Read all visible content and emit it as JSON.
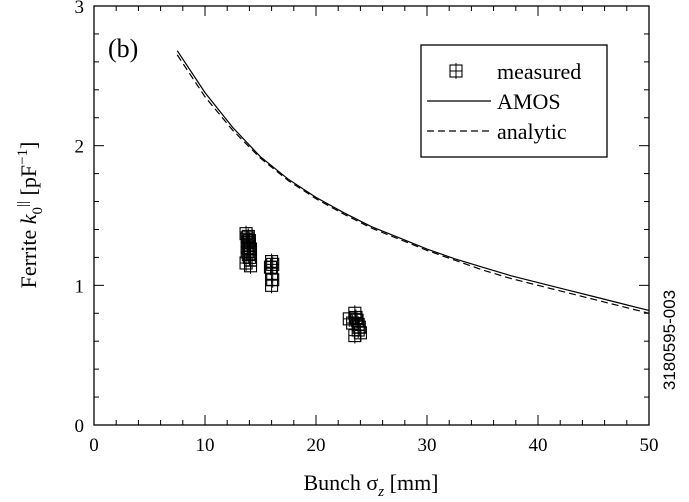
{
  "chart_data": {
    "type": "scatter",
    "panel_label": "(b)",
    "xlabel": "Bunch σ",
    "xlabel_sub": "z",
    "xlabel_unit": " [mm]",
    "ylabel_prefix": "Ferrite ",
    "ylabel_var": "k",
    "ylabel_sub": "0",
    "ylabel_sup": "||",
    "ylabel_unit": " [pF",
    "ylabel_unit_sup": "−1",
    "ylabel_unit_end": "]",
    "xlim": [
      0,
      50
    ],
    "ylim": [
      0,
      3
    ],
    "xticks": [
      0,
      10,
      20,
      30,
      40,
      50
    ],
    "yticks": [
      0,
      1,
      2,
      3
    ],
    "side_id": "3180595-003",
    "legend_position": "top-right",
    "series": [
      {
        "name": "measured",
        "marker": "square-plus",
        "x": [
          13.7,
          13.8,
          13.9,
          14.0,
          14.1,
          13.8,
          13.9,
          14.0,
          14.1,
          13.7,
          13.9,
          14.0,
          13.8,
          14.1,
          16.0,
          16.1,
          15.9,
          16.0,
          16.1,
          16.0,
          23.0,
          23.3,
          23.5,
          23.6,
          23.7,
          23.8,
          23.9,
          24.0,
          23.5,
          23.8
        ],
        "y": [
          1.37,
          1.34,
          1.31,
          1.29,
          1.26,
          1.24,
          1.22,
          1.2,
          1.18,
          1.16,
          1.35,
          1.32,
          1.27,
          1.14,
          1.17,
          1.15,
          1.13,
          1.08,
          1.04,
          1.0,
          0.76,
          0.73,
          0.8,
          0.77,
          0.75,
          0.72,
          0.7,
          0.66,
          0.64,
          0.68
        ]
      },
      {
        "name": "AMOS",
        "style": "solid",
        "x": [
          7.5,
          10,
          12.5,
          15,
          17.5,
          20,
          22.5,
          25,
          27.5,
          30,
          32.5,
          35,
          37.5,
          40,
          42.5,
          45,
          47.5,
          50
        ],
        "y": [
          2.68,
          2.38,
          2.13,
          1.92,
          1.76,
          1.63,
          1.52,
          1.42,
          1.34,
          1.26,
          1.19,
          1.13,
          1.07,
          1.02,
          0.97,
          0.92,
          0.87,
          0.82
        ]
      },
      {
        "name": "analytic",
        "style": "dashed",
        "x": [
          7.5,
          10,
          12.5,
          15,
          17.5,
          20,
          22.5,
          25,
          27.5,
          30,
          32.5,
          35,
          37.5,
          40,
          42.5,
          45,
          47.5,
          50
        ],
        "y": [
          2.65,
          2.35,
          2.11,
          1.91,
          1.75,
          1.62,
          1.51,
          1.41,
          1.33,
          1.25,
          1.18,
          1.11,
          1.05,
          1.0,
          0.95,
          0.9,
          0.85,
          0.8
        ]
      }
    ]
  }
}
